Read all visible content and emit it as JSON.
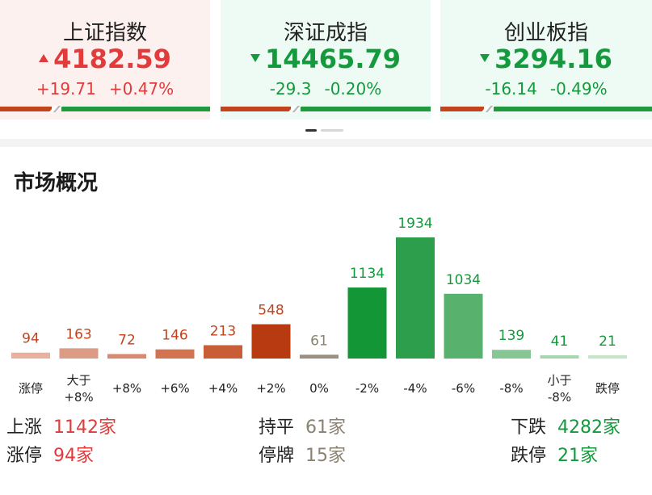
{
  "indices": [
    {
      "name": "上证指数",
      "price": "4182.59",
      "direction": "up",
      "change": "+19.71",
      "pct": "+0.47%",
      "up_ratio": 0.26,
      "bg": "#fdf1ef"
    },
    {
      "name": "深证成指",
      "price": "14465.79",
      "direction": "down",
      "change": "-29.3",
      "pct": "-0.20%",
      "up_ratio": 0.35,
      "bg": "#eefaf4"
    },
    {
      "name": "创业板指",
      "price": "3294.16",
      "direction": "down",
      "change": "-16.14",
      "pct": "-0.49%",
      "up_ratio": 0.22,
      "bg": "#eefaf4"
    }
  ],
  "section_title": "市场概况",
  "chart_data": {
    "type": "bar",
    "categories": [
      "涨停",
      "大于\n+8%",
      "+8%",
      "+6%",
      "+4%",
      "+2%",
      "0%",
      "-2%",
      "-4%",
      "-6%",
      "-8%",
      "小于\n-8%",
      "跌停"
    ],
    "values": [
      94,
      163,
      72,
      146,
      213,
      548,
      61,
      1134,
      1934,
      1034,
      139,
      41,
      21
    ],
    "colors": [
      "#e9b09d",
      "#dc9b84",
      "#d98a6d",
      "#d4734f",
      "#c95d35",
      "#b83a10",
      "#9a8f80",
      "#139636",
      "#2d9e4b",
      "#58b26e",
      "#86c693",
      "#a6d6ae",
      "#c4e5c8"
    ],
    "label_colors": [
      "#c2431c",
      "#c2431c",
      "#c2431c",
      "#c2431c",
      "#c2431c",
      "#c2431c",
      "#8a8272",
      "#149a3d",
      "#149a3d",
      "#149a3d",
      "#149a3d",
      "#149a3d",
      "#149a3d"
    ]
  },
  "stats": {
    "rise_label": "上涨",
    "rise_value": "1142家",
    "flat_label": "持平",
    "flat_value": "61家",
    "fall_label": "下跌",
    "fall_value": "4282家",
    "limit_up_label": "涨停",
    "limit_up_value": "94家",
    "suspend_label": "停牌",
    "suspend_value": "15家",
    "limit_down_label": "跌停",
    "limit_down_value": "21家"
  },
  "colors": {
    "red": "#e13b3b",
    "green": "#149a3d",
    "gray": "#8a8272"
  }
}
